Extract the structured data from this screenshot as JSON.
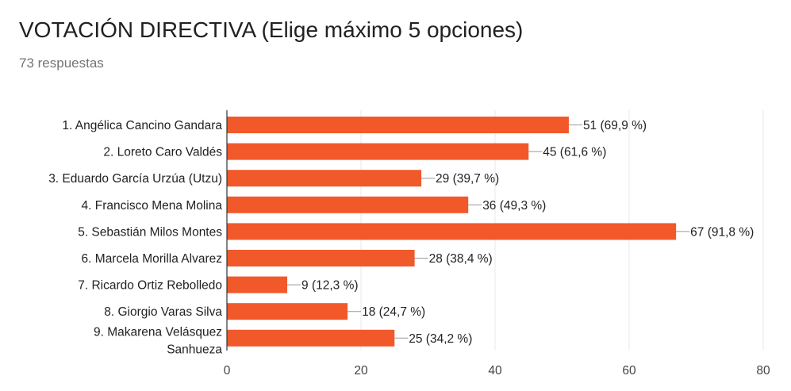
{
  "header": {
    "title": "VOTACIÓN DIRECTIVA (Elige máximo 5 opciones)",
    "responses": "73 respuestas"
  },
  "colors": {
    "bar": "#f1592a",
    "grid": "#e8e8e8",
    "axis": "#333333",
    "leader": "#999999"
  },
  "chart_data": {
    "type": "bar",
    "orientation": "horizontal",
    "categories": [
      [
        "1. Angélica Cancino Gandara"
      ],
      [
        "2. Loreto Caro Valdés"
      ],
      [
        "3. Eduardo García Urzúa (Utzu)"
      ],
      [
        "4. Francisco Mena Molina"
      ],
      [
        "5. Sebastián Milos Montes"
      ],
      [
        "6. Marcela Morilla Alvarez"
      ],
      [
        "7. Ricardo Ortiz Rebolledo"
      ],
      [
        "8. Giorgio Varas Silva"
      ],
      [
        "9. Makarena Velásquez",
        "Sanhueza"
      ]
    ],
    "values": [
      51,
      45,
      29,
      36,
      67,
      28,
      9,
      18,
      25
    ],
    "data_labels": [
      "51 (69,9 %)",
      "45 (61,6 %)",
      "29 (39,7 %)",
      "36 (49,3 %)",
      "67 (91,8 %)",
      "28 (38,4 %)",
      "9 (12,3 %)",
      "18 (24,7 %)",
      "25 (34,2 %)"
    ],
    "xlim": [
      0,
      80
    ],
    "xticks": [
      0,
      20,
      40,
      60,
      80
    ],
    "grid": true,
    "legend": "none"
  }
}
